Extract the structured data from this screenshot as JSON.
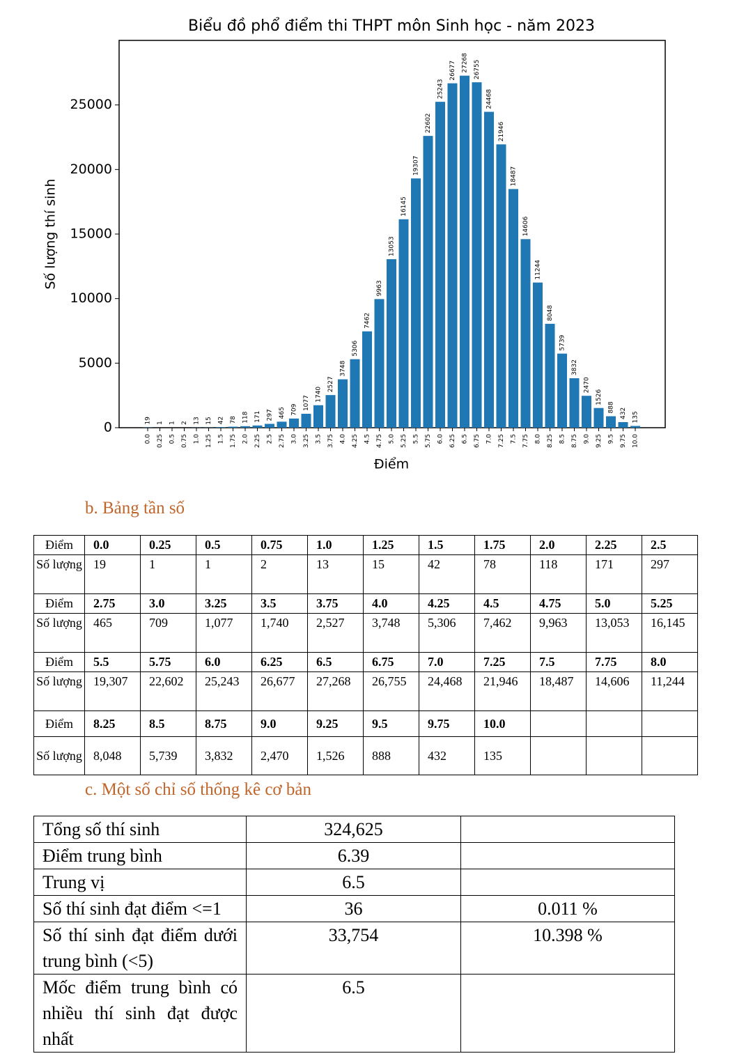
{
  "chart_data": {
    "type": "bar",
    "title": "Biểu đồ phổ điểm thi THPT môn Sinh học - năm 2023",
    "x_label": "Điểm",
    "y_label": "Số lượng thí sinh",
    "color": "#1f77b4",
    "categories": [
      "0.0",
      "0.25",
      "0.5",
      "0.75",
      "1.0",
      "1.25",
      "1.5",
      "1.75",
      "2.0",
      "2.25",
      "2.5",
      "2.75",
      "3.0",
      "3.25",
      "3.5",
      "3.75",
      "4.0",
      "4.25",
      "4.5",
      "4.75",
      "5.0",
      "5.25",
      "5.5",
      "5.75",
      "6.0",
      "6.25",
      "6.5",
      "6.75",
      "7.0",
      "7.25",
      "7.5",
      "7.75",
      "8.0",
      "8.25",
      "8.5",
      "8.75",
      "9.0",
      "9.25",
      "9.5",
      "9.75",
      "10.0"
    ],
    "values": [
      19,
      1,
      1,
      2,
      13,
      15,
      42,
      78,
      118,
      171,
      297,
      465,
      709,
      1077,
      1740,
      2527,
      3748,
      5306,
      7462,
      9963,
      13053,
      16145,
      19307,
      22602,
      25243,
      26677,
      27268,
      26755,
      24468,
      21946,
      18487,
      14606,
      11244,
      8048,
      5739,
      3832,
      2470,
      1526,
      888,
      432,
      135
    ],
    "ylim": [
      0,
      30000
    ],
    "yticks": [
      0,
      5000,
      10000,
      15000,
      20000,
      25000
    ]
  },
  "frequency_table": {
    "heading": "b. Bảng tần số",
    "rows": [
      [
        "Điểm",
        "0.0",
        "0.25",
        "0.5",
        "0.75",
        "1.0",
        "1.25",
        "1.5",
        "1.75",
        "2.0",
        "2.25",
        "2.5"
      ],
      [
        "Số lượng",
        "19",
        "1",
        "1",
        "2",
        "13",
        "15",
        "42",
        "78",
        "118",
        "171",
        "297"
      ],
      [
        "Điểm",
        "2.75",
        "3.0",
        "3.25",
        "3.5",
        "3.75",
        "4.0",
        "4.25",
        "4.5",
        "4.75",
        "5.0",
        "5.25"
      ],
      [
        "Số lượng",
        "465",
        "709",
        "1,077",
        "1,740",
        "2,527",
        "3,748",
        "5,306",
        "7,462",
        "9,963",
        "13,053",
        "16,145"
      ],
      [
        "Điểm",
        "5.5",
        "5.75",
        "6.0",
        "6.25",
        "6.5",
        "6.75",
        "7.0",
        "7.25",
        "7.5",
        "7.75",
        "8.0"
      ],
      [
        "Số lượng",
        "19,307",
        "22,602",
        "25,243",
        "26,677",
        "27,268",
        "26,755",
        "24,468",
        "21,946",
        "18,487",
        "14,606",
        "11,244"
      ],
      [
        "Điểm",
        "8.25",
        "8.5",
        "8.75",
        "9.0",
        "9.25",
        "9.5",
        "9.75",
        "10.0"
      ],
      [
        "Số lượng",
        "8,048",
        "5,739",
        "3,832",
        "2,470",
        "1,526",
        "888",
        "432",
        "135"
      ]
    ]
  },
  "statistics": {
    "heading": "c. Một số chỉ số thống kê cơ bản",
    "rows": [
      [
        "Tổng số thí sinh",
        "324,625"
      ],
      [
        "Điểm trung bình",
        "6.39"
      ],
      [
        "Trung vị",
        "6.5"
      ],
      [
        "Số thí sinh đạt điểm <=1",
        "36",
        "0.011 %"
      ],
      [
        "Số thí sinh đạt điểm dưới trung bình (<5)",
        "33,754",
        "10.398 %"
      ],
      [
        "Mốc điểm trung bình có nhiều thí sinh đạt được nhất",
        "6.5"
      ]
    ]
  }
}
